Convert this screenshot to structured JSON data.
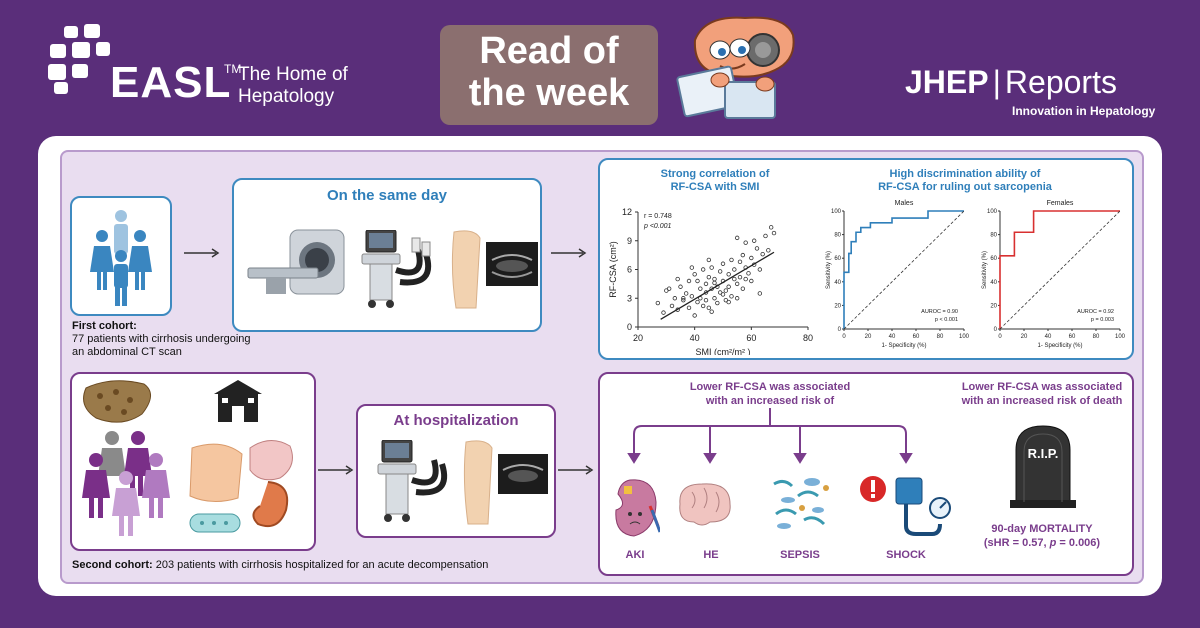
{
  "header": {
    "easl_logo": "EASL",
    "easl_tm": "TM",
    "easl_tagline": "The Home of Hepatology",
    "read_line1": "Read of",
    "read_line2": "the week",
    "journal_name_bold": "JHEP",
    "journal_name_rest": "Reports",
    "journal_tagline": "Innovation in Hepatology"
  },
  "cohort1": {
    "title_bold": "First cohort:",
    "line2": "77 patients with cirrhosis undergoing",
    "line3": "an abdominal CT scan",
    "panel_title": "On the same day"
  },
  "cohort2": {
    "title_bold": "Second cohort:",
    "desc": " 203 patients  with cirrhosis hospitalized for an acute decompensation",
    "panel_title": "At hospitalization"
  },
  "results_top": {
    "heading1_line1": "Strong correlation of",
    "heading1_line2": "RF-CSA with SMI",
    "heading2_line1": "High discrimination ability of",
    "heading2_line2": "RF-CSA for ruling out sarcopenia"
  },
  "chart_data": [
    {
      "type": "scatter",
      "title": "",
      "xlabel": "SMI (cm²/m² )",
      "ylabel": "RF-CSA (cm²)",
      "xlim": [
        20,
        80
      ],
      "ylim": [
        0,
        12
      ],
      "xticks": [
        "20",
        "40",
        "60",
        "80"
      ],
      "yticks": [
        "0",
        "3",
        "6",
        "9",
        "12"
      ],
      "annotation_r": "r = 0.748",
      "annotation_p": "p <0.001",
      "regression": [
        [
          28,
          0.8
        ],
        [
          68,
          7.8
        ]
      ],
      "points": [
        [
          27,
          2.5
        ],
        [
          29,
          1.5
        ],
        [
          30,
          3.8
        ],
        [
          32,
          2.2
        ],
        [
          33,
          3.0
        ],
        [
          34,
          1.8
        ],
        [
          35,
          4.2
        ],
        [
          36,
          2.8
        ],
        [
          37,
          3.5
        ],
        [
          38,
          2.0
        ],
        [
          38,
          4.8
        ],
        [
          39,
          3.2
        ],
        [
          40,
          1.2
        ],
        [
          40,
          5.5
        ],
        [
          41,
          2.6
        ],
        [
          42,
          4.0
        ],
        [
          42,
          3.0
        ],
        [
          43,
          6.0
        ],
        [
          43,
          2.2
        ],
        [
          44,
          4.5
        ],
        [
          44,
          3.6
        ],
        [
          45,
          5.2
        ],
        [
          45,
          2.0
        ],
        [
          46,
          4.0
        ],
        [
          46,
          6.2
        ],
        [
          47,
          3.0
        ],
        [
          47,
          5.0
        ],
        [
          48,
          4.2
        ],
        [
          48,
          2.5
        ],
        [
          49,
          5.8
        ],
        [
          49,
          3.6
        ],
        [
          50,
          4.8
        ],
        [
          50,
          6.6
        ],
        [
          51,
          3.8
        ],
        [
          51,
          2.8
        ],
        [
          52,
          5.5
        ],
        [
          52,
          4.2
        ],
        [
          53,
          7.0
        ],
        [
          53,
          3.2
        ],
        [
          54,
          5.0
        ],
        [
          54,
          6.0
        ],
        [
          55,
          4.5
        ],
        [
          55,
          9.3
        ],
        [
          56,
          6.8
        ],
        [
          56,
          5.2
        ],
        [
          57,
          4.0
        ],
        [
          57,
          7.5
        ],
        [
          58,
          6.2
        ],
        [
          58,
          8.8
        ],
        [
          59,
          5.6
        ],
        [
          60,
          7.2
        ],
        [
          60,
          4.8
        ],
        [
          61,
          6.5
        ],
        [
          62,
          8.2
        ],
        [
          63,
          6.0
        ],
        [
          63,
          3.5
        ],
        [
          64,
          7.6
        ],
        [
          65,
          9.5
        ],
        [
          66,
          8.0
        ],
        [
          67,
          10.4
        ],
        [
          68,
          9.8
        ],
        [
          34,
          5.0
        ],
        [
          36,
          3.0
        ],
        [
          41,
          4.8
        ],
        [
          44,
          2.8
        ],
        [
          47,
          4.6
        ],
        [
          50,
          3.4
        ],
        [
          52,
          2.6
        ],
        [
          55,
          3.0
        ],
        [
          58,
          5.0
        ],
        [
          31,
          4.0
        ],
        [
          39,
          6.2
        ],
        [
          45,
          7.0
        ],
        [
          61,
          9.0
        ],
        [
          46,
          1.6
        ]
      ]
    },
    {
      "type": "line",
      "title": "Males",
      "xlabel": "1- Specificity (%)",
      "ylabel": "Sensitivity (%)",
      "xlim": [
        0,
        100
      ],
      "ylim": [
        0,
        100
      ],
      "xticks": [
        "0",
        "20",
        "40",
        "60",
        "80",
        "100"
      ],
      "yticks": [
        "0",
        "20",
        "40",
        "60",
        "80",
        "100"
      ],
      "annotation_auroc": "AUROC = 0.90",
      "annotation_p": "p < 0.001",
      "series": [
        {
          "name": "ROC",
          "color": "#2f7fba",
          "points": [
            [
              0,
              0
            ],
            [
              0,
              48
            ],
            [
              4,
              48
            ],
            [
              4,
              64
            ],
            [
              6,
              64
            ],
            [
              6,
              74
            ],
            [
              10,
              74
            ],
            [
              10,
              82
            ],
            [
              14,
              82
            ],
            [
              14,
              86
            ],
            [
              22,
              86
            ],
            [
              22,
              90
            ],
            [
              40,
              90
            ],
            [
              40,
              94
            ],
            [
              70,
              94
            ],
            [
              70,
              100
            ],
            [
              100,
              100
            ]
          ]
        },
        {
          "name": "reference",
          "color": "#333333",
          "points": [
            [
              0,
              0
            ],
            [
              100,
              100
            ]
          ]
        }
      ]
    },
    {
      "type": "line",
      "title": "Females",
      "xlabel": "1- Specificity (%)",
      "ylabel": "Sensitivity (%)",
      "xlim": [
        0,
        100
      ],
      "ylim": [
        0,
        100
      ],
      "xticks": [
        "0",
        "20",
        "40",
        "60",
        "80",
        "100"
      ],
      "yticks": [
        "0",
        "20",
        "40",
        "60",
        "80",
        "100"
      ],
      "annotation_auroc": "AUROC = 0.92",
      "annotation_p": "p = 0.003",
      "series": [
        {
          "name": "ROC",
          "color": "#d83030",
          "points": [
            [
              0,
              0
            ],
            [
              0,
              62
            ],
            [
              12,
              62
            ],
            [
              12,
              82
            ],
            [
              28,
              82
            ],
            [
              28,
              100
            ],
            [
              100,
              100
            ]
          ]
        },
        {
          "name": "reference",
          "color": "#333333",
          "points": [
            [
              0,
              0
            ],
            [
              100,
              100
            ]
          ]
        }
      ]
    }
  ],
  "results_bottom": {
    "heading_line1": "Lower RF-CSA was associated",
    "heading_line2": "with an increased risk of",
    "outcomes": [
      "AKI",
      "HE",
      "SEPSIS",
      "SHOCK"
    ],
    "death_line1": "Lower RF-CSA was associated",
    "death_line2": "with an increased risk of death",
    "rip": "R.I.P.",
    "mortality_line1": "90-day MORTALITY",
    "mortality_line2_a": "(sHR = 0.57, ",
    "mortality_line2_p": "p",
    "mortality_line2_b": " = 0.006)"
  },
  "colors": {
    "background": "#5a2e7a",
    "blue_accent": "#2f7fba",
    "purple_accent": "#7a3d8c",
    "panel_bg": "#e9ddf0"
  }
}
